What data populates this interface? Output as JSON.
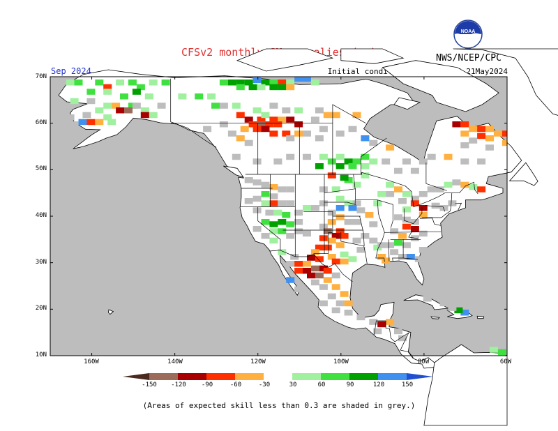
{
  "title": "CFSv2 monthly SM anomalies (mm)",
  "agency": "NWS/NCEP/CPC",
  "logo_text": "NOAA",
  "valid_month": "Sep 2024",
  "initial_conditions": "Initial conditions: 12May2024-21May2024",
  "footnote": "(Areas of expected skill less than 0.3 are shaded in grey.)",
  "map": {
    "lat_labels": [
      "70N",
      "60N",
      "50N",
      "40N",
      "30N",
      "20N",
      "10N"
    ],
    "lon_labels": [
      "160W",
      "140W",
      "120W",
      "100W",
      "80W",
      "60W"
    ],
    "colors": {
      "ocean": "#bdbdbd",
      "land": "#ffffff",
      "low_skill": "#bdbdbd",
      "frame": "#000000"
    }
  },
  "colorbar": {
    "ticks": [
      "-150",
      "-120",
      "-90",
      "-60",
      "-30",
      "30",
      "60",
      "90",
      "120",
      "150"
    ],
    "bins": [
      {
        "range": "< -150",
        "color": "#4a2a1e"
      },
      {
        "range": "-150 to -120",
        "color": "#9c6b5a"
      },
      {
        "range": "-120 to -90",
        "color": "#a80000"
      },
      {
        "range": "-90 to -60",
        "color": "#ff3000"
      },
      {
        "range": "-60 to -30",
        "color": "#ffb040"
      },
      {
        "range": "-30 to 30",
        "color": "#ffffff"
      },
      {
        "range": "30 to 60",
        "color": "#a0f0a0"
      },
      {
        "range": "60 to 90",
        "color": "#40e040"
      },
      {
        "range": "90 to 120",
        "color": "#00a000"
      },
      {
        "range": "120 to 150",
        "color": "#4090f0"
      },
      {
        "range": "> 150",
        "color": "#2050d0"
      }
    ]
  }
}
